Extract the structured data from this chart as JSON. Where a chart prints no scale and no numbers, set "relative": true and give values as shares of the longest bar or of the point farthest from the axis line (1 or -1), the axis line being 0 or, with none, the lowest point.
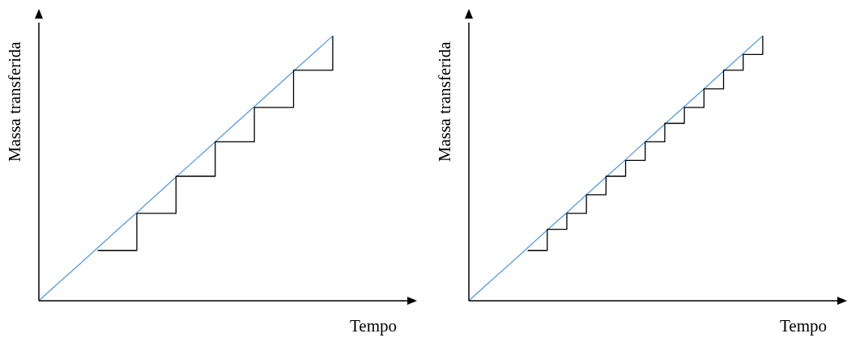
{
  "chart_data": [
    {
      "type": "line",
      "relative": true,
      "xlabel": "Tempo",
      "ylabel": "Massa transferida",
      "categories": [
        null,
        null,
        null,
        null,
        null,
        null,
        null,
        null,
        null,
        null,
        null,
        null,
        null,
        null,
        null,
        null
      ],
      "series": [
        {
          "type": "line",
          "color": "#5b9bd5",
          "values": [
            0,
            0.067,
            0.133,
            0.2,
            0.267,
            0.333,
            0.4,
            0.467,
            0.533,
            0.6,
            0.667,
            0.733,
            0.8,
            0.867,
            0.933,
            1
          ]
        },
        {
          "type": "step",
          "color": "#000000",
          "values": [
            null,
            null,
            null,
            0.19,
            0.19,
            0.33,
            0.33,
            0.47,
            0.47,
            0.6,
            0.6,
            0.73,
            0.73,
            0.87,
            0.87,
            1
          ]
        }
      ]
    },
    {
      "type": "line",
      "relative": true,
      "xlabel": "Tempo",
      "ylabel": "Massa transferida",
      "categories": [
        null,
        null,
        null,
        null,
        null,
        null,
        null,
        null,
        null,
        null,
        null,
        null,
        null,
        null,
        null,
        null
      ],
      "series": [
        {
          "type": "line",
          "color": "#5b9bd5",
          "values": [
            0,
            0.067,
            0.133,
            0.2,
            0.267,
            0.333,
            0.4,
            0.467,
            0.533,
            0.6,
            0.667,
            0.733,
            0.8,
            0.867,
            0.933,
            1
          ]
        },
        {
          "type": "step",
          "color": "#000000",
          "values": [
            null,
            null,
            null,
            0.19,
            0.27,
            0.33,
            0.4,
            0.47,
            0.53,
            0.6,
            0.67,
            0.73,
            0.8,
            0.87,
            0.93,
            1
          ]
        }
      ]
    }
  ]
}
